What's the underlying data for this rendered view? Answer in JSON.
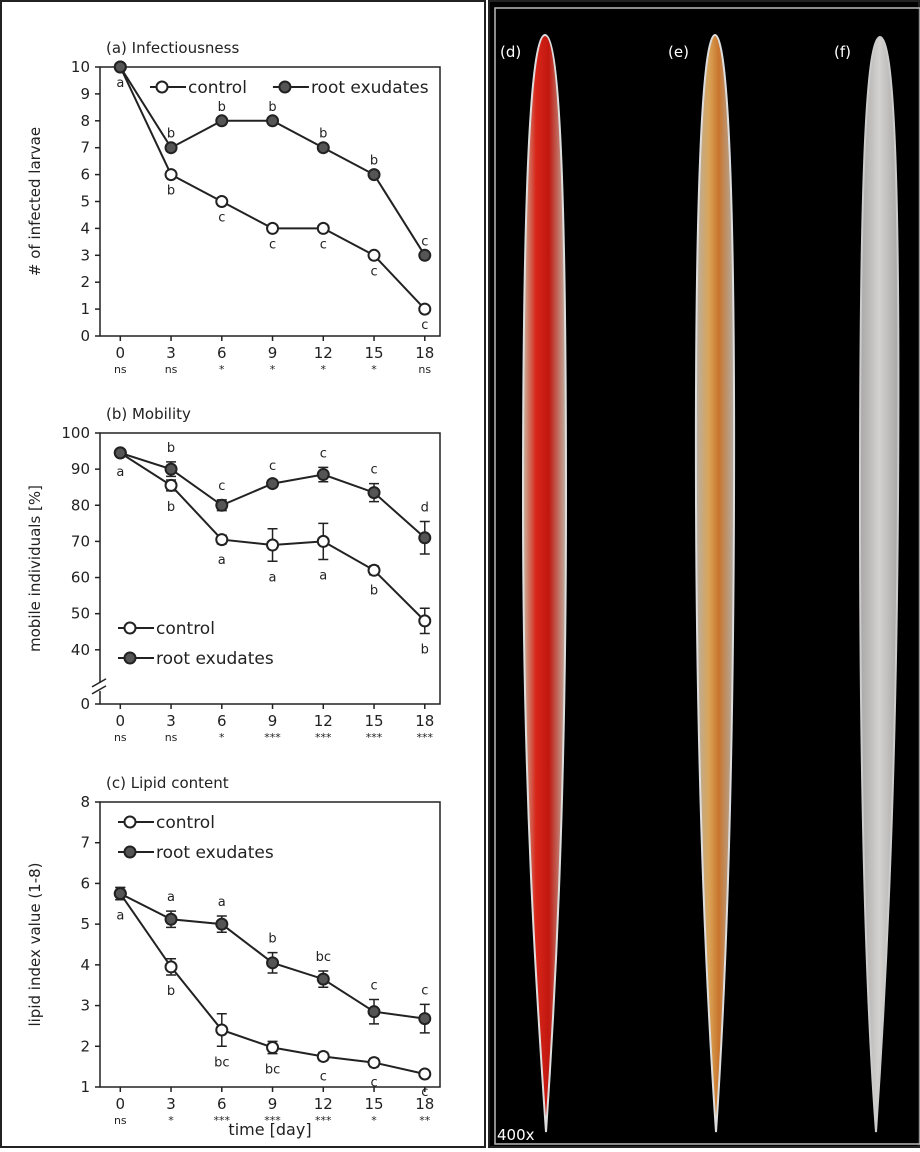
{
  "chart_data": [
    {
      "type": "line",
      "title": "(a) Infectiousness",
      "y_label": "# of infected larvae",
      "x": [
        0,
        3,
        6,
        9,
        12,
        15,
        18
      ],
      "xlim": [
        -1.2,
        18.9
      ],
      "xticks": [
        0,
        3,
        6,
        9,
        12,
        15,
        18
      ],
      "ylim": [
        0,
        10
      ],
      "yticks": [
        0,
        1,
        2,
        3,
        4,
        5,
        6,
        7,
        8,
        9,
        10
      ],
      "legend": "upper right",
      "significance": [
        "ns",
        "ns",
        "*",
        "*",
        "*",
        "*",
        "ns"
      ],
      "series": [
        {
          "name": "control",
          "color": "#ffffff",
          "values": [
            10,
            6,
            5,
            4,
            4,
            3,
            1
          ],
          "letters": [
            "a",
            "b",
            "c",
            "c",
            "c",
            "c",
            "c"
          ]
        },
        {
          "name": "root exudates",
          "color": "#555555",
          "values": [
            10,
            7,
            8,
            8,
            7,
            6,
            3
          ],
          "letters": [
            null,
            "b",
            "b",
            "b",
            "b",
            "b",
            "c"
          ]
        }
      ]
    },
    {
      "type": "line",
      "title": "(b) Mobility",
      "y_label": "mobile individuals [%]",
      "x": [
        0,
        3,
        6,
        9,
        12,
        15,
        18
      ],
      "xlim": [
        -1.2,
        18.9
      ],
      "xticks": [
        0,
        3,
        6,
        9,
        12,
        15,
        18
      ],
      "ylim": [
        0,
        100
      ],
      "ybreak": [
        0,
        25
      ],
      "yticks": [
        0,
        40,
        50,
        60,
        70,
        80,
        90,
        100
      ],
      "legend": "lower left",
      "significance": [
        "ns",
        "ns",
        "*",
        "***",
        "***",
        "***",
        "***"
      ],
      "series": [
        {
          "name": "control",
          "color": "#ffffff",
          "values": [
            94.5,
            85.5,
            70.5,
            69,
            70,
            62,
            48
          ],
          "errors": [
            0.8,
            1.5,
            1.2,
            4.5,
            5,
            1.2,
            3.5
          ],
          "letters": [
            "a",
            "b",
            "a",
            "a",
            "a",
            "b",
            "b"
          ]
        },
        {
          "name": "root exudates",
          "color": "#555555",
          "values": [
            94.5,
            90,
            80,
            86,
            88.5,
            83.5,
            71
          ],
          "errors": [
            0.8,
            2,
            1.5,
            1,
            2,
            2.5,
            4.5
          ],
          "letters": [
            null,
            "b",
            "c",
            "c",
            "c",
            "c",
            "d"
          ]
        }
      ]
    },
    {
      "type": "line",
      "title": "(c) Lipid content",
      "y_label": "lipid index value (1-8)",
      "x_label": "time [day]",
      "x": [
        0,
        3,
        6,
        9,
        12,
        15,
        18
      ],
      "xlim": [
        -1.2,
        18.9
      ],
      "xticks": [
        0,
        3,
        6,
        9,
        12,
        15,
        18
      ],
      "ylim": [
        1,
        8
      ],
      "yticks": [
        1,
        2,
        3,
        4,
        5,
        6,
        7,
        8
      ],
      "legend": "upper left",
      "significance": [
        "ns",
        "*",
        "***",
        "***",
        "***",
        "*",
        "**"
      ],
      "series": [
        {
          "name": "control",
          "color": "#ffffff",
          "values": [
            5.75,
            3.95,
            2.4,
            1.97,
            1.75,
            1.6,
            1.32
          ],
          "errors": [
            0.15,
            0.2,
            0.4,
            0.15,
            0.1,
            0.1,
            0.05
          ],
          "letters": [
            "a",
            "b",
            "bc",
            "bc",
            "c",
            "c",
            "c"
          ]
        },
        {
          "name": "root exudates",
          "color": "#555555",
          "values": [
            5.75,
            5.12,
            5.0,
            4.05,
            3.65,
            2.85,
            2.68
          ],
          "errors": [
            0.15,
            0.2,
            0.2,
            0.25,
            0.2,
            0.3,
            0.35
          ],
          "letters": [
            null,
            "a",
            "a",
            "b",
            "bc",
            "c",
            "c"
          ]
        }
      ]
    }
  ],
  "image_panel": {
    "labels": [
      "(d)",
      "(e)",
      "(f)"
    ],
    "magnification": "400x"
  }
}
